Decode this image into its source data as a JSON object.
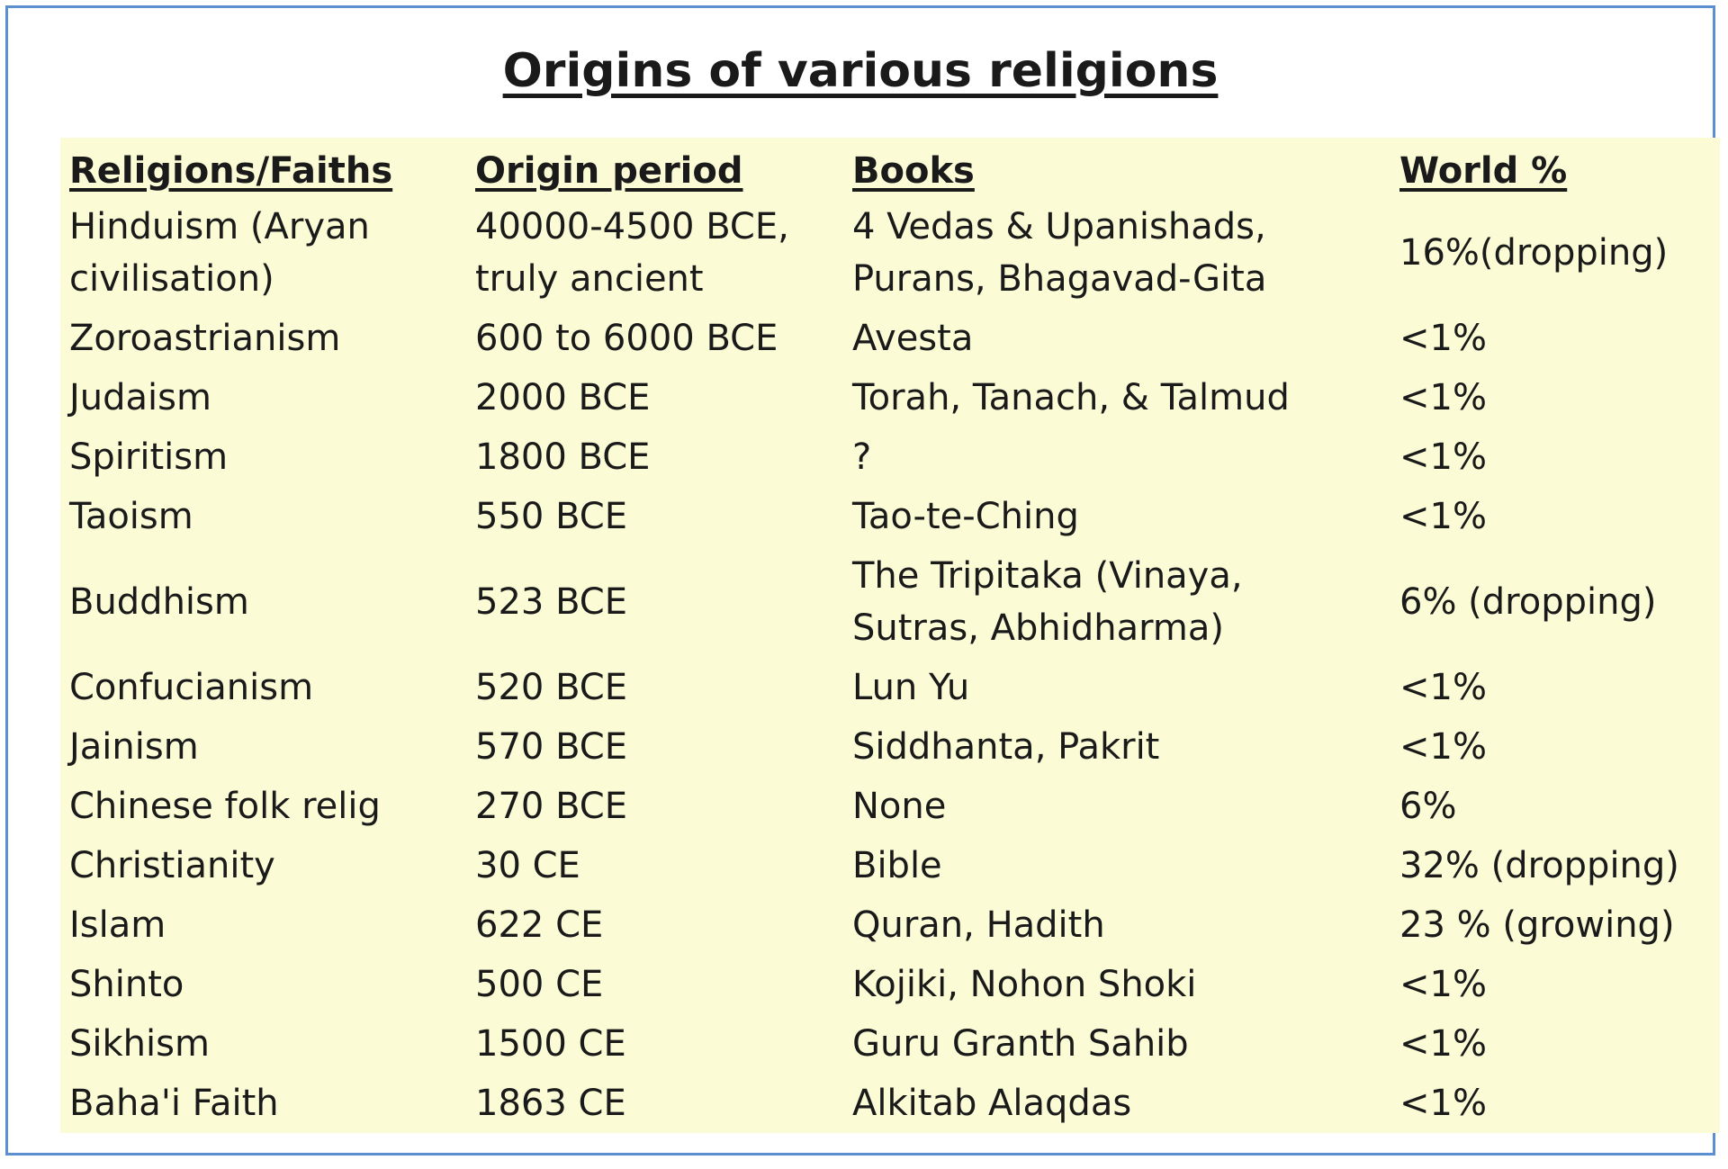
{
  "title": "Origins of various religions",
  "table": {
    "header": [
      "Religions/Faiths",
      "Origin period",
      "Books",
      "World %"
    ],
    "rows": [
      [
        [
          "Hinduism (Aryan",
          "civilisation)"
        ],
        [
          "40000-4500 BCE,",
          "truly ancient"
        ],
        [
          "4 Vedas & Upanishads,",
          "Purans, Bhagavad-Gita"
        ],
        "16%(dropping)"
      ],
      [
        "Zoroastrianism",
        "600 to 6000 BCE",
        "Avesta",
        "<1%"
      ],
      [
        "Judaism",
        "2000 BCE",
        "Torah, Tanach, & Talmud",
        "<1%"
      ],
      [
        "Spiritism",
        "1800 BCE",
        " ?",
        "<1%"
      ],
      [
        "Taoism",
        "550 BCE",
        "Tao-te-Ching",
        "<1%"
      ],
      [
        "Buddhism",
        "523 BCE",
        [
          "The Tripitaka (Vinaya,",
          "Sutras, Abhidharma)"
        ],
        "6% (dropping)"
      ],
      [
        "Confucianism",
        "520 BCE",
        "Lun Yu",
        "<1%"
      ],
      [
        "Jainism",
        "570 BCE",
        "Siddhanta, Pakrit",
        "<1%"
      ],
      [
        "Chinese folk relig",
        "270 BCE",
        "None",
        "6%"
      ],
      [
        "Christianity",
        "30 CE",
        "Bible",
        "32% (dropping)"
      ],
      [
        "Islam",
        "622 CE",
        "Quran, Hadith",
        "23 % (growing)"
      ],
      [
        "Shinto",
        "500 CE",
        "Kojiki, Nohon Shoki",
        "<1%"
      ],
      [
        "Sikhism",
        "1500 CE",
        "Guru Granth Sahib",
        "<1%"
      ],
      [
        "Baha'i Faith",
        "1863 CE",
        "Alkitab Alaqdas",
        "<1%"
      ]
    ]
  }
}
